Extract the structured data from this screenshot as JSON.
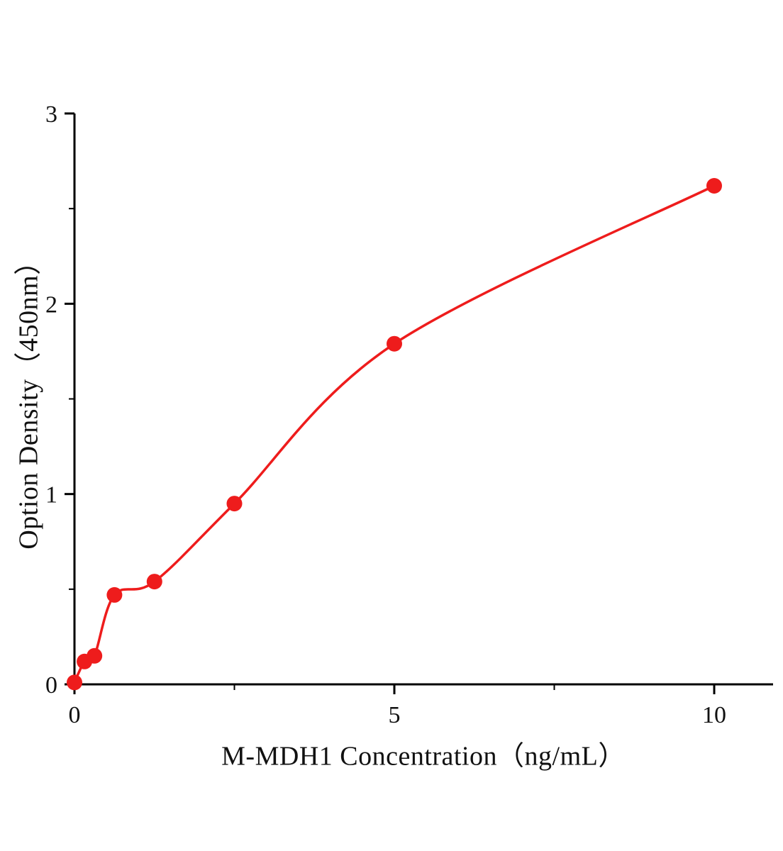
{
  "chart_data": {
    "type": "scatter",
    "title": "",
    "xlabel": "M-MDH1 Concentration（ng/mL）",
    "ylabel": "Option Density（450nm）",
    "x": [
      0,
      0.156,
      0.313,
      0.625,
      1.25,
      2.5,
      5,
      10
    ],
    "y": [
      0.01,
      0.12,
      0.15,
      0.47,
      0.54,
      0.95,
      1.79,
      2.62
    ],
    "xlim": [
      0,
      10.92
    ],
    "ylim": [
      0,
      3
    ],
    "x_major_ticks": [
      0,
      5,
      10
    ],
    "x_minor_ticks": [
      2.5,
      7.5
    ],
    "y_major_ticks": [
      0,
      1,
      2,
      3
    ],
    "y_minor_ticks": [
      0.5,
      1.5,
      2.5
    ],
    "grid": false,
    "legend": null,
    "marker": "circle",
    "fit": "smooth-curve",
    "point_color": "#ee1c1c",
    "line_color": "#ee1c1c",
    "axis_color": "#000000",
    "text_color": "#111111"
  }
}
